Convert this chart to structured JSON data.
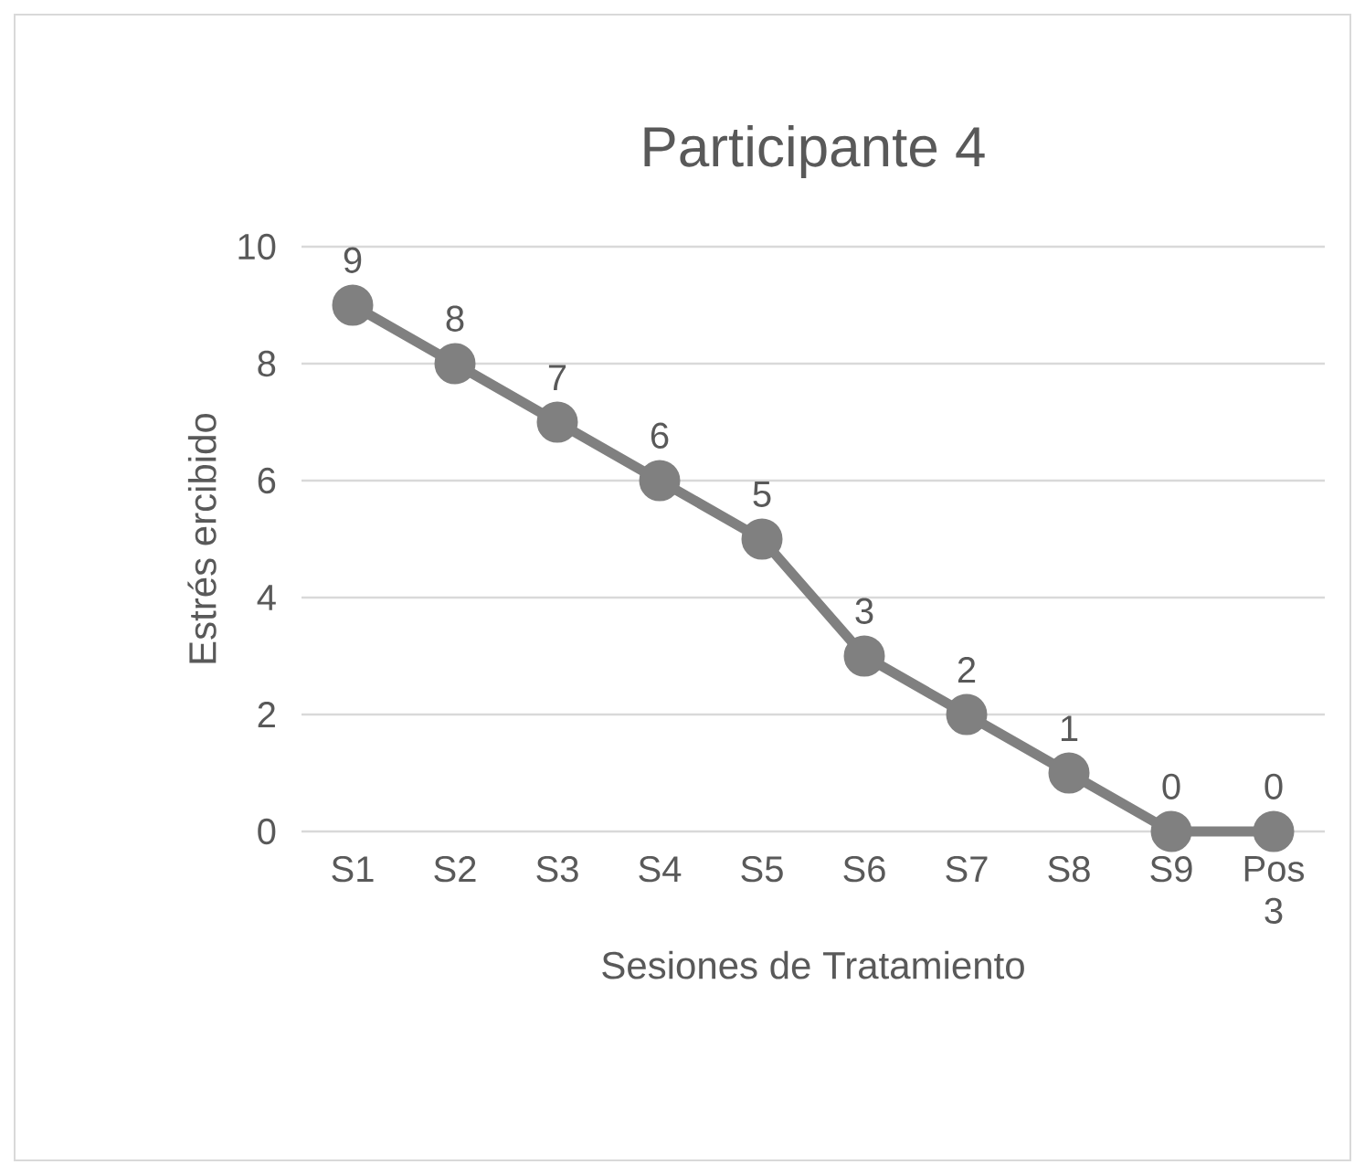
{
  "chart_data": {
    "type": "line",
    "title": "Participante 4",
    "xlabel": "Sesiones de Tratamiento",
    "ylabel": "Estrés ercibido",
    "categories": [
      "S1",
      "S2",
      "S3",
      "S4",
      "S5",
      "S6",
      "S7",
      "S8",
      "S9",
      "Pos 3"
    ],
    "series": [
      {
        "color": "#808080",
        "values": [
          9,
          8,
          7,
          6,
          5,
          3,
          2,
          1,
          0,
          0
        ]
      }
    ],
    "ylim": [
      0,
      10
    ],
    "yticks": [
      0,
      2,
      4,
      6,
      8,
      10
    ],
    "grid": "y",
    "marker": "circle",
    "line_style": "solid",
    "data_labels": true
  }
}
